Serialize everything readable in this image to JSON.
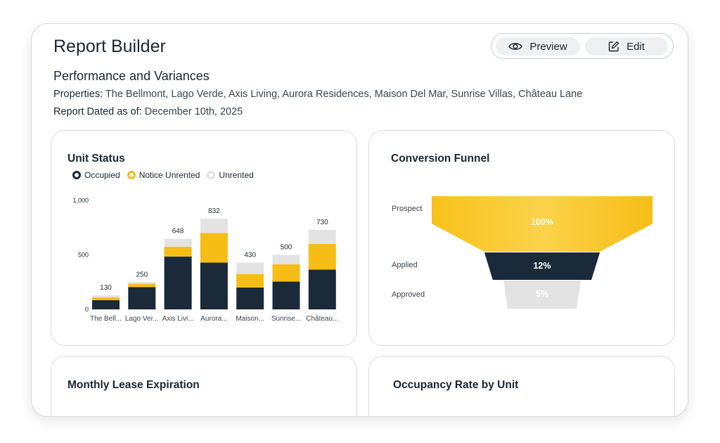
{
  "header": {
    "title": "Report Builder",
    "preview_label": "Preview",
    "edit_label": "Edit"
  },
  "report": {
    "subtitle": "Performance and Variances",
    "properties_label": "Properties:",
    "properties_value": "The Bellmont, Lago Verde, Axis Living, Aurora Residences, Maison Del Mar, Sunrise Villas, Château Lane",
    "date_label": "Report Dated as of:",
    "date_value": "December 10th, 2025"
  },
  "panels": {
    "unit_status": "Unit Status",
    "conversion_funnel": "Conversion Funnel",
    "monthly_lease": "Monthly Lease Expiration",
    "occupancy_rate": "Occupancy Rate by Unit"
  },
  "colors": {
    "occupied": "#1a2a38",
    "notice": "#f6bd16",
    "unrented": "#e3e3e3",
    "accent": "#f6bd16"
  },
  "icons": {
    "preview": "eye-icon",
    "edit": "edit-icon"
  },
  "chart_data": [
    {
      "type": "bar",
      "title": "Unit Status",
      "stacked": true,
      "categories": [
        "The Bell...",
        "Lago Ver...",
        "Axis Livi...",
        "Aurora...",
        "Maison...",
        "Sunrise...",
        "Château..."
      ],
      "series": [
        {
          "name": "Occupied",
          "values": [
            85,
            205,
            485,
            430,
            200,
            255,
            365
          ]
        },
        {
          "name": "Notice Unrented",
          "values": [
            25,
            30,
            90,
            270,
            125,
            160,
            235
          ]
        },
        {
          "name": "Unrented",
          "values": [
            20,
            15,
            73,
            132,
            105,
            85,
            130
          ]
        }
      ],
      "totals": [
        "130",
        "250",
        "648",
        "832",
        "430",
        "500",
        "730"
      ],
      "yticks": [
        {
          "value": 0,
          "label": "0"
        },
        {
          "value": 500,
          "label": "500"
        },
        {
          "value": 1000,
          "label": "1,000"
        }
      ],
      "ylim": [
        0,
        1000
      ],
      "legend": "top-left"
    },
    {
      "type": "funnel",
      "title": "Conversion Funnel",
      "stages": [
        {
          "name": "Prospect",
          "value": 100,
          "label": "100%"
        },
        {
          "name": "Applied",
          "value": 12,
          "label": "12%"
        },
        {
          "name": "Approved",
          "value": 5,
          "label": "5%"
        }
      ]
    }
  ]
}
